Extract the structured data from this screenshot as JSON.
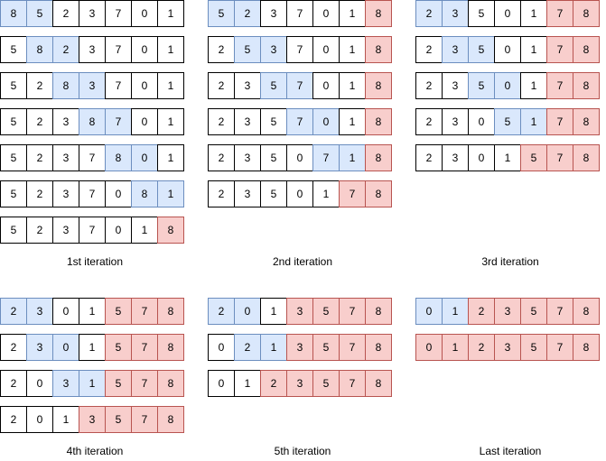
{
  "colors": {
    "default_fill": "#ffffff",
    "default_stroke": "#000000",
    "compare_fill": "#dae8fc",
    "compare_stroke": "#6c8ebf",
    "sorted_fill": "#f8cecc",
    "sorted_stroke": "#b85450"
  },
  "iterations": [
    {
      "caption": "1st iteration",
      "rows": [
        {
          "values": [
            "8",
            "5",
            "2",
            "3",
            "7",
            "0",
            "1"
          ],
          "states": [
            "c",
            "c",
            "n",
            "n",
            "n",
            "n",
            "n"
          ]
        },
        {
          "values": [
            "5",
            "8",
            "2",
            "3",
            "7",
            "0",
            "1"
          ],
          "states": [
            "n",
            "c",
            "c",
            "n",
            "n",
            "n",
            "n"
          ]
        },
        {
          "values": [
            "5",
            "2",
            "8",
            "3",
            "7",
            "0",
            "1"
          ],
          "states": [
            "n",
            "n",
            "c",
            "c",
            "n",
            "n",
            "n"
          ]
        },
        {
          "values": [
            "5",
            "2",
            "3",
            "8",
            "7",
            "0",
            "1"
          ],
          "states": [
            "n",
            "n",
            "n",
            "c",
            "c",
            "n",
            "n"
          ]
        },
        {
          "values": [
            "5",
            "2",
            "3",
            "7",
            "8",
            "0",
            "1"
          ],
          "states": [
            "n",
            "n",
            "n",
            "n",
            "c",
            "c",
            "n"
          ]
        },
        {
          "values": [
            "5",
            "2",
            "3",
            "7",
            "0",
            "8",
            "1"
          ],
          "states": [
            "n",
            "n",
            "n",
            "n",
            "n",
            "c",
            "c"
          ]
        },
        {
          "values": [
            "5",
            "2",
            "3",
            "7",
            "0",
            "1",
            "8"
          ],
          "states": [
            "n",
            "n",
            "n",
            "n",
            "n",
            "n",
            "s"
          ]
        }
      ]
    },
    {
      "caption": "2nd iteration",
      "rows": [
        {
          "values": [
            "5",
            "2",
            "3",
            "7",
            "0",
            "1",
            "8"
          ],
          "states": [
            "c",
            "c",
            "n",
            "n",
            "n",
            "n",
            "s"
          ]
        },
        {
          "values": [
            "2",
            "5",
            "3",
            "7",
            "0",
            "1",
            "8"
          ],
          "states": [
            "n",
            "c",
            "c",
            "n",
            "n",
            "n",
            "s"
          ]
        },
        {
          "values": [
            "2",
            "3",
            "5",
            "7",
            "0",
            "1",
            "8"
          ],
          "states": [
            "n",
            "n",
            "c",
            "c",
            "n",
            "n",
            "s"
          ]
        },
        {
          "values": [
            "2",
            "3",
            "5",
            "7",
            "0",
            "1",
            "8"
          ],
          "states": [
            "n",
            "n",
            "n",
            "c",
            "c",
            "n",
            "s"
          ]
        },
        {
          "values": [
            "2",
            "3",
            "5",
            "0",
            "7",
            "1",
            "8"
          ],
          "states": [
            "n",
            "n",
            "n",
            "n",
            "c",
            "c",
            "s"
          ]
        },
        {
          "values": [
            "2",
            "3",
            "5",
            "0",
            "1",
            "7",
            "8"
          ],
          "states": [
            "n",
            "n",
            "n",
            "n",
            "n",
            "s",
            "s"
          ]
        }
      ]
    },
    {
      "caption": "3rd iteration",
      "rows": [
        {
          "values": [
            "2",
            "3",
            "5",
            "0",
            "1",
            "7",
            "8"
          ],
          "states": [
            "c",
            "c",
            "n",
            "n",
            "n",
            "s",
            "s"
          ]
        },
        {
          "values": [
            "2",
            "3",
            "5",
            "0",
            "1",
            "7",
            "8"
          ],
          "states": [
            "n",
            "c",
            "c",
            "n",
            "n",
            "s",
            "s"
          ]
        },
        {
          "values": [
            "2",
            "3",
            "5",
            "0",
            "1",
            "7",
            "8"
          ],
          "states": [
            "n",
            "n",
            "c",
            "c",
            "n",
            "s",
            "s"
          ]
        },
        {
          "values": [
            "2",
            "3",
            "0",
            "5",
            "1",
            "7",
            "8"
          ],
          "states": [
            "n",
            "n",
            "n",
            "c",
            "c",
            "s",
            "s"
          ]
        },
        {
          "values": [
            "2",
            "3",
            "0",
            "1",
            "5",
            "7",
            "8"
          ],
          "states": [
            "n",
            "n",
            "n",
            "n",
            "s",
            "s",
            "s"
          ]
        }
      ]
    },
    {
      "caption": "4th iteration",
      "rows": [
        {
          "values": [
            "2",
            "3",
            "0",
            "1",
            "5",
            "7",
            "8"
          ],
          "states": [
            "c",
            "c",
            "n",
            "n",
            "s",
            "s",
            "s"
          ]
        },
        {
          "values": [
            "2",
            "3",
            "0",
            "1",
            "5",
            "7",
            "8"
          ],
          "states": [
            "n",
            "c",
            "c",
            "n",
            "s",
            "s",
            "s"
          ]
        },
        {
          "values": [
            "2",
            "0",
            "3",
            "1",
            "5",
            "7",
            "8"
          ],
          "states": [
            "n",
            "n",
            "c",
            "c",
            "s",
            "s",
            "s"
          ]
        },
        {
          "values": [
            "2",
            "0",
            "1",
            "3",
            "5",
            "7",
            "8"
          ],
          "states": [
            "n",
            "n",
            "n",
            "s",
            "s",
            "s",
            "s"
          ]
        }
      ]
    },
    {
      "caption": "5th iteration",
      "rows": [
        {
          "values": [
            "2",
            "0",
            "1",
            "3",
            "5",
            "7",
            "8"
          ],
          "states": [
            "c",
            "c",
            "n",
            "s",
            "s",
            "s",
            "s"
          ]
        },
        {
          "values": [
            "0",
            "2",
            "1",
            "3",
            "5",
            "7",
            "8"
          ],
          "states": [
            "n",
            "c",
            "c",
            "s",
            "s",
            "s",
            "s"
          ]
        },
        {
          "values": [
            "0",
            "1",
            "2",
            "3",
            "5",
            "7",
            "8"
          ],
          "states": [
            "n",
            "n",
            "s",
            "s",
            "s",
            "s",
            "s"
          ]
        }
      ]
    },
    {
      "caption": "Last iteration",
      "rows": [
        {
          "values": [
            "0",
            "1",
            "2",
            "3",
            "5",
            "7",
            "8"
          ],
          "states": [
            "c",
            "c",
            "s",
            "s",
            "s",
            "s",
            "s"
          ]
        },
        {
          "values": [
            "0",
            "1",
            "2",
            "3",
            "5",
            "7",
            "8"
          ],
          "states": [
            "s",
            "s",
            "s",
            "s",
            "s",
            "s",
            "s"
          ]
        }
      ]
    }
  ]
}
